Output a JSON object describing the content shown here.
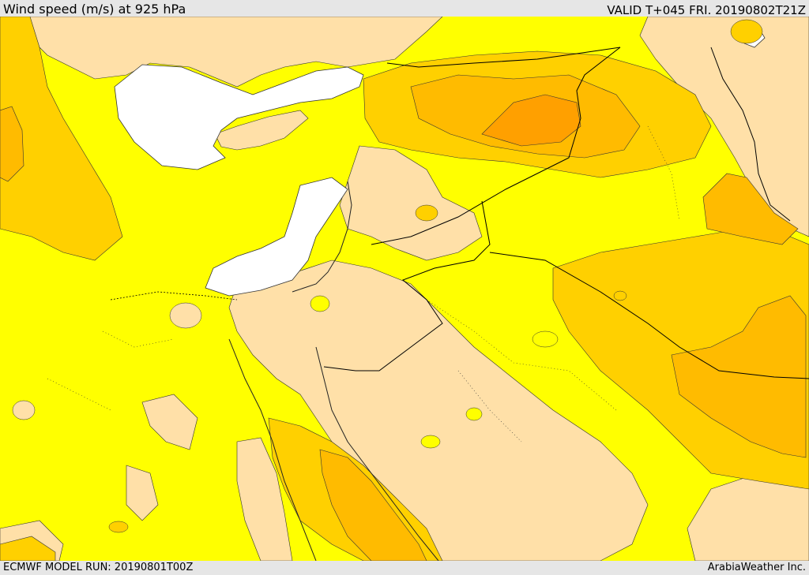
{
  "header": {
    "title": "Wind speed (m/s) at 925 hPa",
    "valid": "VALID T+045 FRI. 20190802T21Z"
  },
  "footer": {
    "model_run": "ECMWF MODEL RUN: 20190801T00Z",
    "credit": "ArabiaWeather Inc."
  },
  "colors": {
    "sea_open": "#ffffff",
    "level_low": "#ffe0a8",
    "level_mid": "#ffff00",
    "level_high": "#ffd000",
    "level_higher": "#ffbb00",
    "level_peak": "#ffa000",
    "coast_line": "#222222",
    "border_line": "#000000"
  }
}
